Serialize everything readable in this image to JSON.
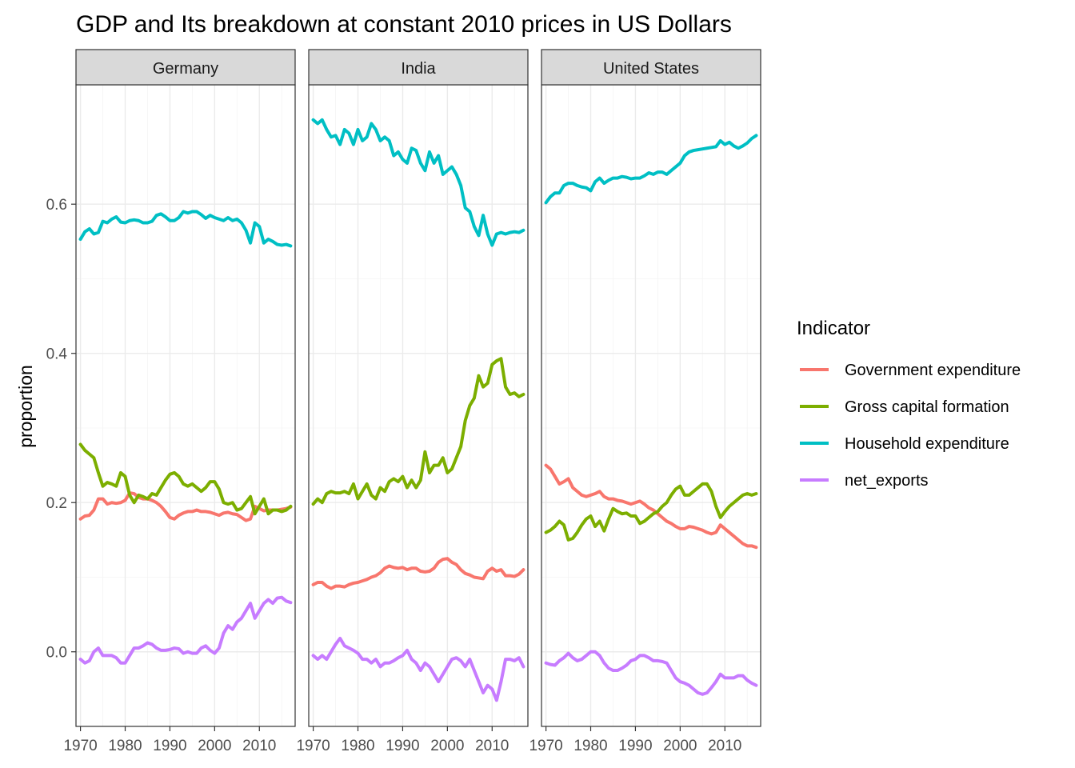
{
  "chart_data": {
    "type": "line",
    "title": "GDP and Its breakdown at constant 2010 prices in US Dollars",
    "xlabel": "",
    "ylabel": "proportion",
    "xlim": [
      1969,
      2018
    ],
    "ylim": [
      -0.1,
      0.76
    ],
    "x_ticks": [
      1970,
      1980,
      1990,
      2000,
      2010
    ],
    "x_tick_labels": [
      "1970",
      "1980",
      "1990",
      "2000",
      "2010"
    ],
    "y_ticks": [
      0.0,
      0.2,
      0.4,
      0.6
    ],
    "y_tick_labels": [
      "0.0",
      "0.2",
      "0.4",
      "0.6"
    ],
    "grid": true,
    "legend": {
      "title": "Indicator",
      "position": "right",
      "entries": [
        {
          "name": "Government expenditure",
          "color": "#F8766D"
        },
        {
          "name": "Gross capital formation",
          "color": "#7CAE00"
        },
        {
          "name": "Household expenditure",
          "color": "#00BFC4"
        },
        {
          "name": "net_exports",
          "color": "#C77CFF"
        }
      ]
    },
    "x": [
      1970,
      1971,
      1972,
      1973,
      1974,
      1975,
      1976,
      1977,
      1978,
      1979,
      1980,
      1981,
      1982,
      1983,
      1984,
      1985,
      1986,
      1987,
      1988,
      1989,
      1990,
      1991,
      1992,
      1993,
      1994,
      1995,
      1996,
      1997,
      1998,
      1999,
      2000,
      2001,
      2002,
      2003,
      2004,
      2005,
      2006,
      2007,
      2008,
      2009,
      2010,
      2011,
      2012,
      2013,
      2014,
      2015,
      2016,
      2017
    ],
    "panels": [
      {
        "name": "Germany",
        "series": [
          {
            "name": "Government expenditure",
            "color": "#F8766D",
            "values": [
              0.178,
              0.182,
              0.183,
              0.19,
              0.205,
              0.205,
              0.198,
              0.2,
              0.199,
              0.2,
              0.203,
              0.213,
              0.212,
              0.207,
              0.205,
              0.205,
              0.203,
              0.2,
              0.195,
              0.188,
              0.18,
              0.178,
              0.183,
              0.186,
              0.188,
              0.188,
              0.19,
              0.188,
              0.188,
              0.187,
              0.185,
              0.183,
              0.186,
              0.187,
              0.185,
              0.184,
              0.18,
              0.176,
              0.178,
              0.195,
              0.192,
              0.189,
              0.19,
              0.19,
              0.19,
              0.191,
              0.192,
              0.194
            ]
          },
          {
            "name": "Gross capital formation",
            "color": "#7CAE00",
            "values": [
              0.278,
              0.27,
              0.265,
              0.26,
              0.24,
              0.222,
              0.227,
              0.225,
              0.222,
              0.24,
              0.235,
              0.21,
              0.2,
              0.21,
              0.208,
              0.205,
              0.212,
              0.21,
              0.22,
              0.23,
              0.238,
              0.24,
              0.235,
              0.225,
              0.222,
              0.225,
              0.22,
              0.215,
              0.22,
              0.228,
              0.228,
              0.218,
              0.2,
              0.198,
              0.2,
              0.19,
              0.192,
              0.2,
              0.208,
              0.185,
              0.195,
              0.205,
              0.185,
              0.19,
              0.19,
              0.188,
              0.19,
              0.195
            ]
          },
          {
            "name": "Household expenditure",
            "color": "#00BFC4",
            "values": [
              0.553,
              0.563,
              0.567,
              0.56,
              0.562,
              0.577,
              0.575,
              0.58,
              0.583,
              0.576,
              0.575,
              0.578,
              0.579,
              0.578,
              0.575,
              0.575,
              0.577,
              0.585,
              0.587,
              0.583,
              0.578,
              0.578,
              0.582,
              0.59,
              0.588,
              0.59,
              0.59,
              0.586,
              0.581,
              0.585,
              0.582,
              0.58,
              0.578,
              0.582,
              0.578,
              0.58,
              0.575,
              0.565,
              0.548,
              0.575,
              0.57,
              0.548,
              0.553,
              0.55,
              0.546,
              0.545,
              0.546,
              0.544
            ]
          },
          {
            "name": "net_exports",
            "color": "#C77CFF",
            "values": [
              -0.01,
              -0.015,
              -0.012,
              0.0,
              0.005,
              -0.005,
              -0.005,
              -0.005,
              -0.008,
              -0.015,
              -0.015,
              -0.005,
              0.005,
              0.005,
              0.008,
              0.012,
              0.01,
              0.005,
              0.002,
              0.002,
              0.003,
              0.005,
              0.004,
              -0.002,
              0.0,
              -0.002,
              -0.002,
              0.005,
              0.008,
              0.002,
              -0.002,
              0.005,
              0.025,
              0.035,
              0.03,
              0.04,
              0.045,
              0.055,
              0.065,
              0.045,
              0.055,
              0.065,
              0.07,
              0.065,
              0.072,
              0.073,
              0.068,
              0.066
            ]
          }
        ]
      },
      {
        "name": "India",
        "series": [
          {
            "name": "Government expenditure",
            "color": "#F8766D",
            "values": [
              0.09,
              0.093,
              0.093,
              0.088,
              0.085,
              0.088,
              0.088,
              0.087,
              0.09,
              0.092,
              0.093,
              0.095,
              0.097,
              0.1,
              0.102,
              0.106,
              0.112,
              0.115,
              0.113,
              0.112,
              0.113,
              0.11,
              0.112,
              0.112,
              0.108,
              0.107,
              0.108,
              0.112,
              0.12,
              0.124,
              0.125,
              0.12,
              0.117,
              0.11,
              0.105,
              0.103,
              0.1,
              0.099,
              0.098,
              0.108,
              0.112,
              0.108,
              0.11,
              0.102,
              0.102,
              0.101,
              0.104,
              0.11
            ]
          },
          {
            "name": "Gross capital formation",
            "color": "#7CAE00",
            "values": [
              0.198,
              0.205,
              0.2,
              0.212,
              0.215,
              0.213,
              0.213,
              0.215,
              0.212,
              0.225,
              0.205,
              0.215,
              0.225,
              0.21,
              0.205,
              0.22,
              0.215,
              0.228,
              0.232,
              0.228,
              0.235,
              0.22,
              0.23,
              0.22,
              0.23,
              0.268,
              0.24,
              0.25,
              0.25,
              0.26,
              0.24,
              0.245,
              0.26,
              0.275,
              0.31,
              0.33,
              0.34,
              0.37,
              0.355,
              0.36,
              0.385,
              0.39,
              0.393,
              0.355,
              0.345,
              0.347,
              0.342,
              0.345
            ]
          },
          {
            "name": "Household expenditure",
            "color": "#00BFC4",
            "values": [
              0.713,
              0.708,
              0.713,
              0.7,
              0.69,
              0.692,
              0.68,
              0.7,
              0.695,
              0.68,
              0.7,
              0.685,
              0.69,
              0.708,
              0.7,
              0.685,
              0.69,
              0.685,
              0.665,
              0.67,
              0.66,
              0.655,
              0.675,
              0.672,
              0.655,
              0.645,
              0.67,
              0.655,
              0.665,
              0.64,
              0.645,
              0.65,
              0.64,
              0.625,
              0.595,
              0.59,
              0.57,
              0.558,
              0.585,
              0.56,
              0.545,
              0.56,
              0.562,
              0.56,
              0.562,
              0.563,
              0.562,
              0.565
            ]
          },
          {
            "name": "net_exports",
            "color": "#C77CFF",
            "values": [
              -0.005,
              -0.01,
              -0.005,
              -0.01,
              0.0,
              0.01,
              0.018,
              0.008,
              0.005,
              0.002,
              -0.002,
              -0.01,
              -0.01,
              -0.015,
              -0.01,
              -0.02,
              -0.015,
              -0.015,
              -0.012,
              -0.008,
              -0.005,
              0.002,
              -0.01,
              -0.015,
              -0.025,
              -0.015,
              -0.02,
              -0.03,
              -0.04,
              -0.03,
              -0.02,
              -0.01,
              -0.008,
              -0.012,
              -0.02,
              -0.01,
              -0.025,
              -0.04,
              -0.055,
              -0.045,
              -0.05,
              -0.065,
              -0.04,
              -0.01,
              -0.01,
              -0.012,
              -0.008,
              -0.02
            ]
          }
        ]
      },
      {
        "name": "United States",
        "series": [
          {
            "name": "Government expenditure",
            "color": "#F8766D",
            "values": [
              0.25,
              0.245,
              0.235,
              0.225,
              0.228,
              0.232,
              0.22,
              0.215,
              0.21,
              0.208,
              0.21,
              0.212,
              0.215,
              0.208,
              0.205,
              0.205,
              0.203,
              0.202,
              0.2,
              0.198,
              0.2,
              0.202,
              0.198,
              0.193,
              0.19,
              0.185,
              0.18,
              0.175,
              0.172,
              0.168,
              0.165,
              0.165,
              0.168,
              0.167,
              0.165,
              0.163,
              0.16,
              0.158,
              0.16,
              0.17,
              0.165,
              0.16,
              0.155,
              0.15,
              0.145,
              0.142,
              0.142,
              0.14
            ]
          },
          {
            "name": "Gross capital formation",
            "color": "#7CAE00",
            "values": [
              0.16,
              0.163,
              0.168,
              0.175,
              0.17,
              0.15,
              0.152,
              0.16,
              0.17,
              0.178,
              0.182,
              0.168,
              0.175,
              0.162,
              0.178,
              0.192,
              0.188,
              0.185,
              0.186,
              0.182,
              0.182,
              0.172,
              0.175,
              0.18,
              0.185,
              0.188,
              0.195,
              0.2,
              0.21,
              0.218,
              0.222,
              0.21,
              0.21,
              0.215,
              0.22,
              0.225,
              0.225,
              0.215,
              0.195,
              0.18,
              0.188,
              0.195,
              0.2,
              0.205,
              0.21,
              0.212,
              0.21,
              0.212
            ]
          },
          {
            "name": "Household expenditure",
            "color": "#00BFC4",
            "values": [
              0.602,
              0.61,
              0.615,
              0.615,
              0.625,
              0.628,
              0.628,
              0.625,
              0.623,
              0.622,
              0.618,
              0.63,
              0.635,
              0.628,
              0.632,
              0.635,
              0.635,
              0.637,
              0.636,
              0.634,
              0.635,
              0.635,
              0.638,
              0.642,
              0.64,
              0.643,
              0.643,
              0.64,
              0.645,
              0.65,
              0.655,
              0.665,
              0.67,
              0.672,
              0.673,
              0.674,
              0.675,
              0.676,
              0.677,
              0.685,
              0.68,
              0.683,
              0.678,
              0.675,
              0.678,
              0.682,
              0.688,
              0.692
            ]
          },
          {
            "name": "net_exports",
            "color": "#C77CFF",
            "values": [
              -0.015,
              -0.017,
              -0.018,
              -0.012,
              -0.008,
              -0.002,
              -0.008,
              -0.012,
              -0.01,
              -0.005,
              0.0,
              0.0,
              -0.005,
              -0.015,
              -0.022,
              -0.025,
              -0.025,
              -0.022,
              -0.018,
              -0.012,
              -0.01,
              -0.005,
              -0.005,
              -0.008,
              -0.012,
              -0.012,
              -0.013,
              -0.015,
              -0.025,
              -0.035,
              -0.04,
              -0.042,
              -0.045,
              -0.05,
              -0.055,
              -0.057,
              -0.055,
              -0.048,
              -0.04,
              -0.03,
              -0.035,
              -0.035,
              -0.035,
              -0.032,
              -0.032,
              -0.038,
              -0.042,
              -0.045
            ]
          }
        ]
      }
    ]
  }
}
